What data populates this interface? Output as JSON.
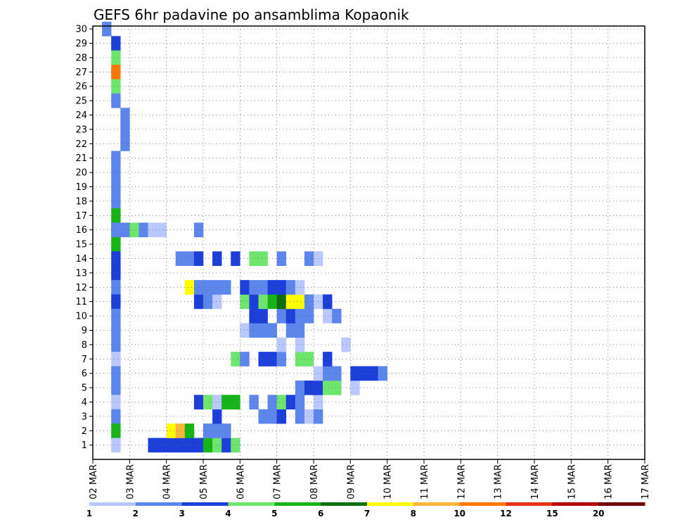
{
  "chart_data": {
    "type": "heatmap",
    "title": "GEFS 6hr padavine po ansamblima Kopaonik",
    "xlabel": "",
    "ylabel": "",
    "x_tick_labels": [
      "02 MAR",
      "03 MAR",
      "04 MAR",
      "05 MAR",
      "06 MAR",
      "07 MAR",
      "08 MAR",
      "09 MAR",
      "10 MAR",
      "11 MAR",
      "12 MAR",
      "13 MAR",
      "14 MAR",
      "15 MAR",
      "16 MAR",
      "17 MAR"
    ],
    "x_range_hours": [
      0,
      360
    ],
    "time_step_hours": 6,
    "y_tick_labels": [
      "1",
      "2",
      "3",
      "4",
      "5",
      "6",
      "7",
      "8",
      "9",
      "10",
      "11",
      "12",
      "13",
      "14",
      "15",
      "16",
      "17",
      "18",
      "19",
      "20",
      "21",
      "22",
      "23",
      "24",
      "25",
      "26",
      "27",
      "28",
      "29",
      "30"
    ],
    "y_range_members": [
      1,
      30
    ],
    "grid": true,
    "legend_placement": "bottom",
    "color_scale": {
      "tick_labels": [
        "1",
        "2",
        "3",
        "4",
        "5",
        "6",
        "7",
        "8",
        "10",
        "12",
        "15",
        "20"
      ],
      "colors": [
        "#b9c8ff",
        "#5d86ec",
        "#1b3fd8",
        "#6ee66e",
        "#16b416",
        "#0e6e0e",
        "#ffff00",
        "#ffb43c",
        "#ff7800",
        "#e63214",
        "#b40000",
        "#6e0000"
      ]
    },
    "cells": [
      [
        1,
        30,
        1
      ],
      [
        2,
        29,
        2
      ],
      [
        2,
        28,
        3
      ],
      [
        2,
        27,
        8
      ],
      [
        2,
        26,
        3
      ],
      [
        2,
        25,
        1
      ],
      [
        3,
        24,
        1
      ],
      [
        3,
        23,
        1
      ],
      [
        3,
        22,
        1
      ],
      [
        2,
        21,
        1
      ],
      [
        2,
        20,
        1
      ],
      [
        2,
        19,
        1
      ],
      [
        2,
        18,
        1
      ],
      [
        2,
        17,
        4
      ],
      [
        2,
        16,
        4
      ],
      [
        2,
        15,
        4
      ],
      [
        2,
        14,
        2
      ],
      [
        2,
        13,
        2
      ],
      [
        2,
        12,
        1
      ],
      [
        2,
        11,
        2
      ],
      [
        2,
        10,
        1
      ],
      [
        2,
        9,
        1
      ],
      [
        2,
        8,
        1
      ],
      [
        2,
        7,
        0
      ],
      [
        2,
        6,
        1
      ],
      [
        2,
        5,
        1
      ],
      [
        2,
        4,
        0
      ],
      [
        2,
        3,
        1
      ],
      [
        2,
        2,
        4
      ],
      [
        2,
        1,
        0
      ],
      [
        6,
        1,
        2
      ],
      [
        7,
        1,
        2
      ],
      [
        8,
        1,
        2
      ],
      [
        9,
        1,
        2
      ],
      [
        10,
        1,
        2
      ],
      [
        11,
        1,
        2
      ],
      [
        12,
        1,
        4
      ],
      [
        13,
        1,
        3
      ],
      [
        14,
        1,
        2
      ],
      [
        15,
        1,
        3
      ],
      [
        8,
        2,
        6
      ],
      [
        9,
        2,
        7
      ],
      [
        10,
        2,
        4
      ],
      [
        12,
        2,
        1
      ],
      [
        13,
        2,
        1
      ],
      [
        14,
        2,
        1
      ],
      [
        13,
        3,
        2
      ],
      [
        18,
        3,
        1
      ],
      [
        19,
        3,
        1
      ],
      [
        20,
        3,
        2
      ],
      [
        22,
        3,
        1
      ],
      [
        23,
        3,
        0
      ],
      [
        24,
        3,
        1
      ],
      [
        11,
        4,
        2
      ],
      [
        12,
        4,
        3
      ],
      [
        13,
        4,
        0
      ],
      [
        14,
        4,
        4
      ],
      [
        15,
        4,
        4
      ],
      [
        17,
        4,
        1
      ],
      [
        19,
        4,
        1
      ],
      [
        20,
        4,
        3
      ],
      [
        21,
        4,
        2
      ],
      [
        22,
        4,
        1
      ],
      [
        24,
        4,
        0
      ],
      [
        22,
        5,
        1
      ],
      [
        23,
        5,
        2
      ],
      [
        24,
        5,
        2
      ],
      [
        25,
        5,
        3
      ],
      [
        26,
        5,
        3
      ],
      [
        28,
        5,
        0
      ],
      [
        24,
        6,
        0
      ],
      [
        25,
        6,
        1
      ],
      [
        26,
        6,
        1
      ],
      [
        28,
        6,
        2
      ],
      [
        29,
        6,
        2
      ],
      [
        30,
        6,
        2
      ],
      [
        31,
        6,
        1
      ],
      [
        15,
        7,
        3
      ],
      [
        16,
        7,
        1
      ],
      [
        18,
        7,
        2
      ],
      [
        19,
        7,
        2
      ],
      [
        20,
        7,
        1
      ],
      [
        22,
        7,
        3
      ],
      [
        23,
        7,
        3
      ],
      [
        25,
        7,
        2
      ],
      [
        20,
        8,
        0
      ],
      [
        22,
        8,
        0
      ],
      [
        27,
        8,
        0
      ],
      [
        16,
        9,
        0
      ],
      [
        17,
        9,
        1
      ],
      [
        18,
        9,
        1
      ],
      [
        19,
        9,
        1
      ],
      [
        21,
        9,
        1
      ],
      [
        22,
        9,
        1
      ],
      [
        17,
        10,
        2
      ],
      [
        18,
        10,
        2
      ],
      [
        20,
        10,
        1
      ],
      [
        21,
        10,
        2
      ],
      [
        22,
        10,
        1
      ],
      [
        23,
        10,
        1
      ],
      [
        25,
        10,
        0
      ],
      [
        26,
        10,
        1
      ],
      [
        11,
        11,
        2
      ],
      [
        12,
        11,
        1
      ],
      [
        13,
        11,
        0
      ],
      [
        16,
        11,
        3
      ],
      [
        17,
        11,
        2
      ],
      [
        18,
        11,
        3
      ],
      [
        19,
        11,
        4
      ],
      [
        20,
        11,
        5
      ],
      [
        21,
        11,
        6
      ],
      [
        22,
        11,
        6
      ],
      [
        23,
        11,
        1
      ],
      [
        24,
        11,
        0
      ],
      [
        25,
        11,
        2
      ],
      [
        10,
        12,
        6
      ],
      [
        11,
        12,
        1
      ],
      [
        12,
        12,
        1
      ],
      [
        13,
        12,
        1
      ],
      [
        14,
        12,
        1
      ],
      [
        16,
        12,
        2
      ],
      [
        17,
        12,
        1
      ],
      [
        18,
        12,
        1
      ],
      [
        19,
        12,
        2
      ],
      [
        20,
        12,
        2
      ],
      [
        21,
        12,
        1
      ],
      [
        22,
        12,
        0
      ],
      [
        9,
        14,
        1
      ],
      [
        10,
        14,
        1
      ],
      [
        11,
        14,
        2
      ],
      [
        13,
        14,
        2
      ],
      [
        15,
        14,
        2
      ],
      [
        17,
        14,
        3
      ],
      [
        18,
        14,
        3
      ],
      [
        20,
        14,
        1
      ],
      [
        23,
        14,
        1
      ],
      [
        24,
        14,
        0
      ],
      [
        2,
        16,
        1
      ],
      [
        3,
        16,
        1
      ],
      [
        4,
        16,
        3
      ],
      [
        5,
        16,
        1
      ],
      [
        6,
        16,
        0
      ],
      [
        7,
        16,
        0
      ],
      [
        11,
        16,
        1
      ]
    ]
  }
}
